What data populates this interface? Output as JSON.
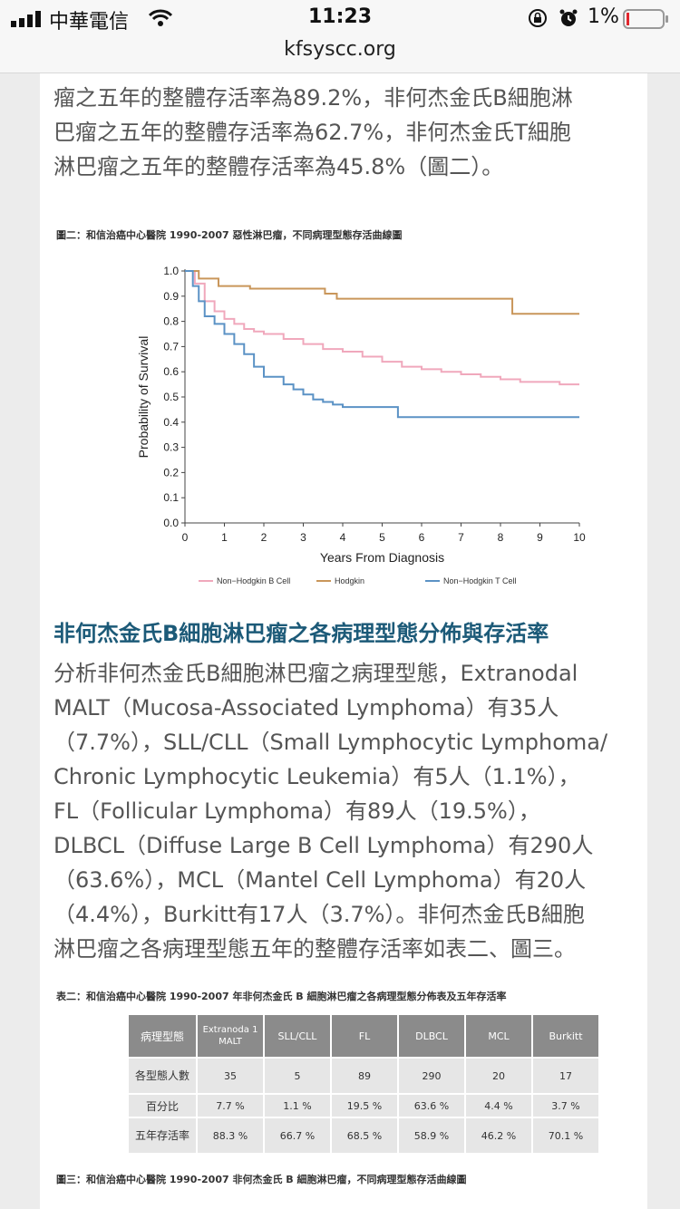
{
  "status_bar": {
    "carrier": "中華電信",
    "time": "11:23",
    "battery": "1%"
  },
  "browser": {
    "url": "kfsyscc.org"
  },
  "intro_lines": [
    "瘤之五年的整體存活率為89.2%，非何杰金氏B細胞淋",
    "巴瘤之五年的整體存活率為62.7%，非何杰金氏T細胞",
    "淋巴瘤之五年的整體存活率為45.8%（圖二）。"
  ],
  "figure2": {
    "caption": "圖二：和信治癌中心醫院 1990-2007 惡性淋巴瘤，不同病理型態存活曲線圖"
  },
  "chart_data": {
    "type": "line",
    "title": "",
    "xlabel": "Years From Diagnosis",
    "ylabel": "Probability of Survival",
    "xlim": [
      0,
      10
    ],
    "ylim": [
      0,
      1
    ],
    "x_ticks": [
      "0",
      "1",
      "2",
      "3",
      "4",
      "5",
      "6",
      "7",
      "8",
      "9",
      "10"
    ],
    "y_ticks": [
      "0.0",
      "0.1",
      "0.2",
      "0.3",
      "0.4",
      "0.5",
      "0.6",
      "0.7",
      "0.8",
      "0.9",
      "1.0"
    ],
    "series": [
      {
        "name": "Non−Hodgkin B Cell",
        "color": "#f0a8bc",
        "x": [
          0,
          0.25,
          0.5,
          0.75,
          1,
          1.25,
          1.5,
          1.75,
          2,
          2.5,
          3,
          3.5,
          4,
          4.5,
          5,
          5.5,
          6,
          6.5,
          7,
          7.5,
          8,
          8.5,
          9,
          9.5,
          10
        ],
        "y": [
          1,
          0.95,
          0.88,
          0.84,
          0.81,
          0.79,
          0.77,
          0.76,
          0.75,
          0.73,
          0.71,
          0.69,
          0.68,
          0.66,
          0.64,
          0.62,
          0.61,
          0.6,
          0.59,
          0.58,
          0.57,
          0.56,
          0.56,
          0.55,
          0.55
        ]
      },
      {
        "name": "Hodgkin",
        "color": "#c9965a",
        "x": [
          0,
          0.35,
          0.85,
          1.65,
          3.55,
          3.85,
          8.3,
          10
        ],
        "y": [
          1,
          0.97,
          0.94,
          0.93,
          0.91,
          0.89,
          0.83,
          0.83
        ]
      },
      {
        "name": "Non−Hodgkin T Cell",
        "color": "#5b92c5",
        "x": [
          0,
          0.2,
          0.35,
          0.5,
          0.75,
          1,
          1.25,
          1.5,
          1.75,
          2,
          2.5,
          2.75,
          3,
          3.25,
          3.5,
          3.75,
          4,
          4.5,
          5.4,
          10
        ],
        "y": [
          1,
          0.94,
          0.88,
          0.82,
          0.79,
          0.75,
          0.71,
          0.67,
          0.62,
          0.58,
          0.55,
          0.53,
          0.51,
          0.49,
          0.48,
          0.47,
          0.46,
          0.46,
          0.42,
          0.42
        ]
      }
    ]
  },
  "section": {
    "heading": "非何杰金氏B細胞淋巴瘤之各病理型態分佈與存活率",
    "lines": [
      "分析非何杰金氏B細胞淋巴瘤之病理型態，Extranodal",
      "MALT（Mucosa-Associated Lymphoma）有35人",
      "（7.7%），SLL/CLL（Small Lymphocytic Lymphoma/",
      "Chronic Lymphocytic Leukemia）有5人（1.1%），",
      "FL（Follicular Lymphoma）有89人（19.5%），",
      "DLBCL（Diffuse Large B Cell Lymphoma）有290人",
      "（63.6%），MCL（Mantel Cell Lymphoma）有20人",
      "（4.4%），Burkitt有17人（3.7%）。非何杰金氏B細胞",
      "淋巴瘤之各病理型態五年的整體存活率如表二、圖三。"
    ]
  },
  "table2": {
    "caption": "表二：和信治癌中心醫院 1990-2007 年非何杰金氏 B 細胞淋巴瘤之各病理型態分佈表及五年存活率",
    "headers": [
      "病理型態",
      "Extranoda 1 MALT",
      "SLL/CLL",
      "FL",
      "DLBCL",
      "MCL",
      "Burkitt"
    ],
    "rows": [
      {
        "label": "各型態人數",
        "values": [
          "35",
          "5",
          "89",
          "290",
          "20",
          "17"
        ]
      },
      {
        "label": "百分比",
        "values": [
          "7.7 %",
          "1.1 %",
          "19.5 %",
          "63.6 %",
          "4.4 %",
          "3.7 %"
        ]
      },
      {
        "label": "五年存活率",
        "values": [
          "88.3 %",
          "66.7 %",
          "68.5 %",
          "58.9 %",
          "46.2 %",
          "70.1 %"
        ]
      }
    ]
  },
  "figure3": {
    "caption": "圖三：和信治癌中心醫院 1990-2007 非何杰金氏 B 細胞淋巴瘤，不同病理型態存活曲線圖"
  }
}
